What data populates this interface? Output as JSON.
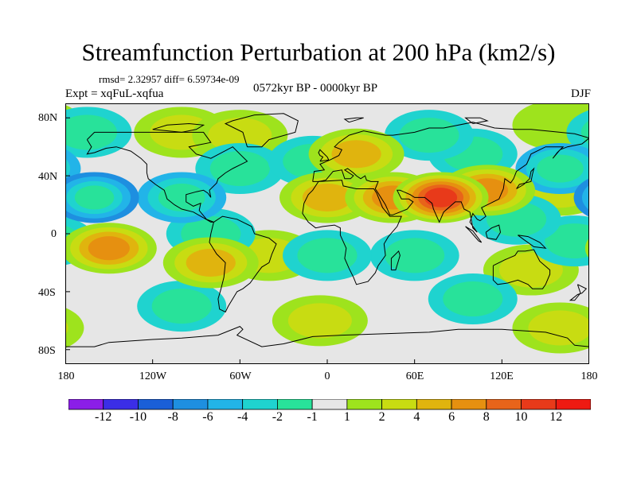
{
  "title": "Streamfunction Perturbation at 200 hPa (km2/s)",
  "stats": "rmsd= 2.32957  diff= 6.59734e-09",
  "experiment": "Expt = xqFuL-xqfua",
  "period": "0572kyr BP - 0000kyr BP",
  "season": "DJF",
  "y_ticks": [
    "80N",
    "40N",
    "0",
    "40S",
    "80S"
  ],
  "x_ticks": [
    "180",
    "120W",
    "60W",
    "0",
    "60E",
    "120E",
    "180"
  ],
  "colorbar": {
    "labels": [
      "-12",
      "-10",
      "-8",
      "-6",
      "-4",
      "-2",
      "-1",
      "1",
      "2",
      "4",
      "6",
      "8",
      "10",
      "12"
    ],
    "colors": [
      "#8b1ee8",
      "#3b2ee6",
      "#1a5fd8",
      "#1e8fe0",
      "#22b4e8",
      "#1fd3cf",
      "#28e29a",
      "#e6e6e6",
      "#9ee31d",
      "#c8dc12",
      "#e0b40e",
      "#e69010",
      "#e8641a",
      "#e83a1a",
      "#ee1a12"
    ]
  },
  "chart_data": {
    "type": "heatmap",
    "title": "Streamfunction Perturbation at 200 hPa (km2/s)",
    "units": "km2/s",
    "projection": "cylindrical equidistant",
    "lon_range": [
      -180,
      180
    ],
    "lat_range": [
      -90,
      90
    ],
    "levels": [
      -12,
      -10,
      -8,
      -6,
      -4,
      -2,
      -1,
      1,
      2,
      4,
      6,
      8,
      10,
      12
    ],
    "features": [
      {
        "lon": 78,
        "lat": 25,
        "value": 10
      },
      {
        "lon": 45,
        "lat": 25,
        "value": 6
      },
      {
        "lon": 0,
        "lat": 25,
        "value": 4
      },
      {
        "lon": 20,
        "lat": 55,
        "value": 4
      },
      {
        "lon": 110,
        "lat": 30,
        "value": 6
      },
      {
        "lon": -100,
        "lat": 70,
        "value": 2
      },
      {
        "lon": -60,
        "lat": 68,
        "value": 2
      },
      {
        "lon": 160,
        "lat": 30,
        "value": 2
      },
      {
        "lon": 160,
        "lat": 75,
        "value": 1
      },
      {
        "lon": -150,
        "lat": -10,
        "value": 6
      },
      {
        "lon": -80,
        "lat": -20,
        "value": 4
      },
      {
        "lon": -40,
        "lat": -15,
        "value": 2
      },
      {
        "lon": -5,
        "lat": -60,
        "value": 2
      },
      {
        "lon": 140,
        "lat": -25,
        "value": 2
      },
      {
        "lon": 160,
        "lat": -65,
        "value": 2
      },
      {
        "lon": -160,
        "lat": 25,
        "value": -6
      },
      {
        "lon": -100,
        "lat": 25,
        "value": -4
      },
      {
        "lon": -60,
        "lat": 45,
        "value": -2
      },
      {
        "lon": -10,
        "lat": 50,
        "value": -2
      },
      {
        "lon": 160,
        "lat": 45,
        "value": -4
      },
      {
        "lon": 100,
        "lat": 55,
        "value": -2
      },
      {
        "lon": 70,
        "lat": 68,
        "value": -2
      },
      {
        "lon": -165,
        "lat": 70,
        "value": -2
      },
      {
        "lon": -80,
        "lat": 0,
        "value": -2
      },
      {
        "lon": 60,
        "lat": -15,
        "value": -2
      },
      {
        "lon": 0,
        "lat": -15,
        "value": -2
      },
      {
        "lon": 100,
        "lat": -45,
        "value": -2
      },
      {
        "lon": -100,
        "lat": -50,
        "value": -2
      },
      {
        "lon": 170,
        "lat": -5,
        "value": -2
      },
      {
        "lon": 130,
        "lat": 10,
        "value": -2
      }
    ]
  }
}
